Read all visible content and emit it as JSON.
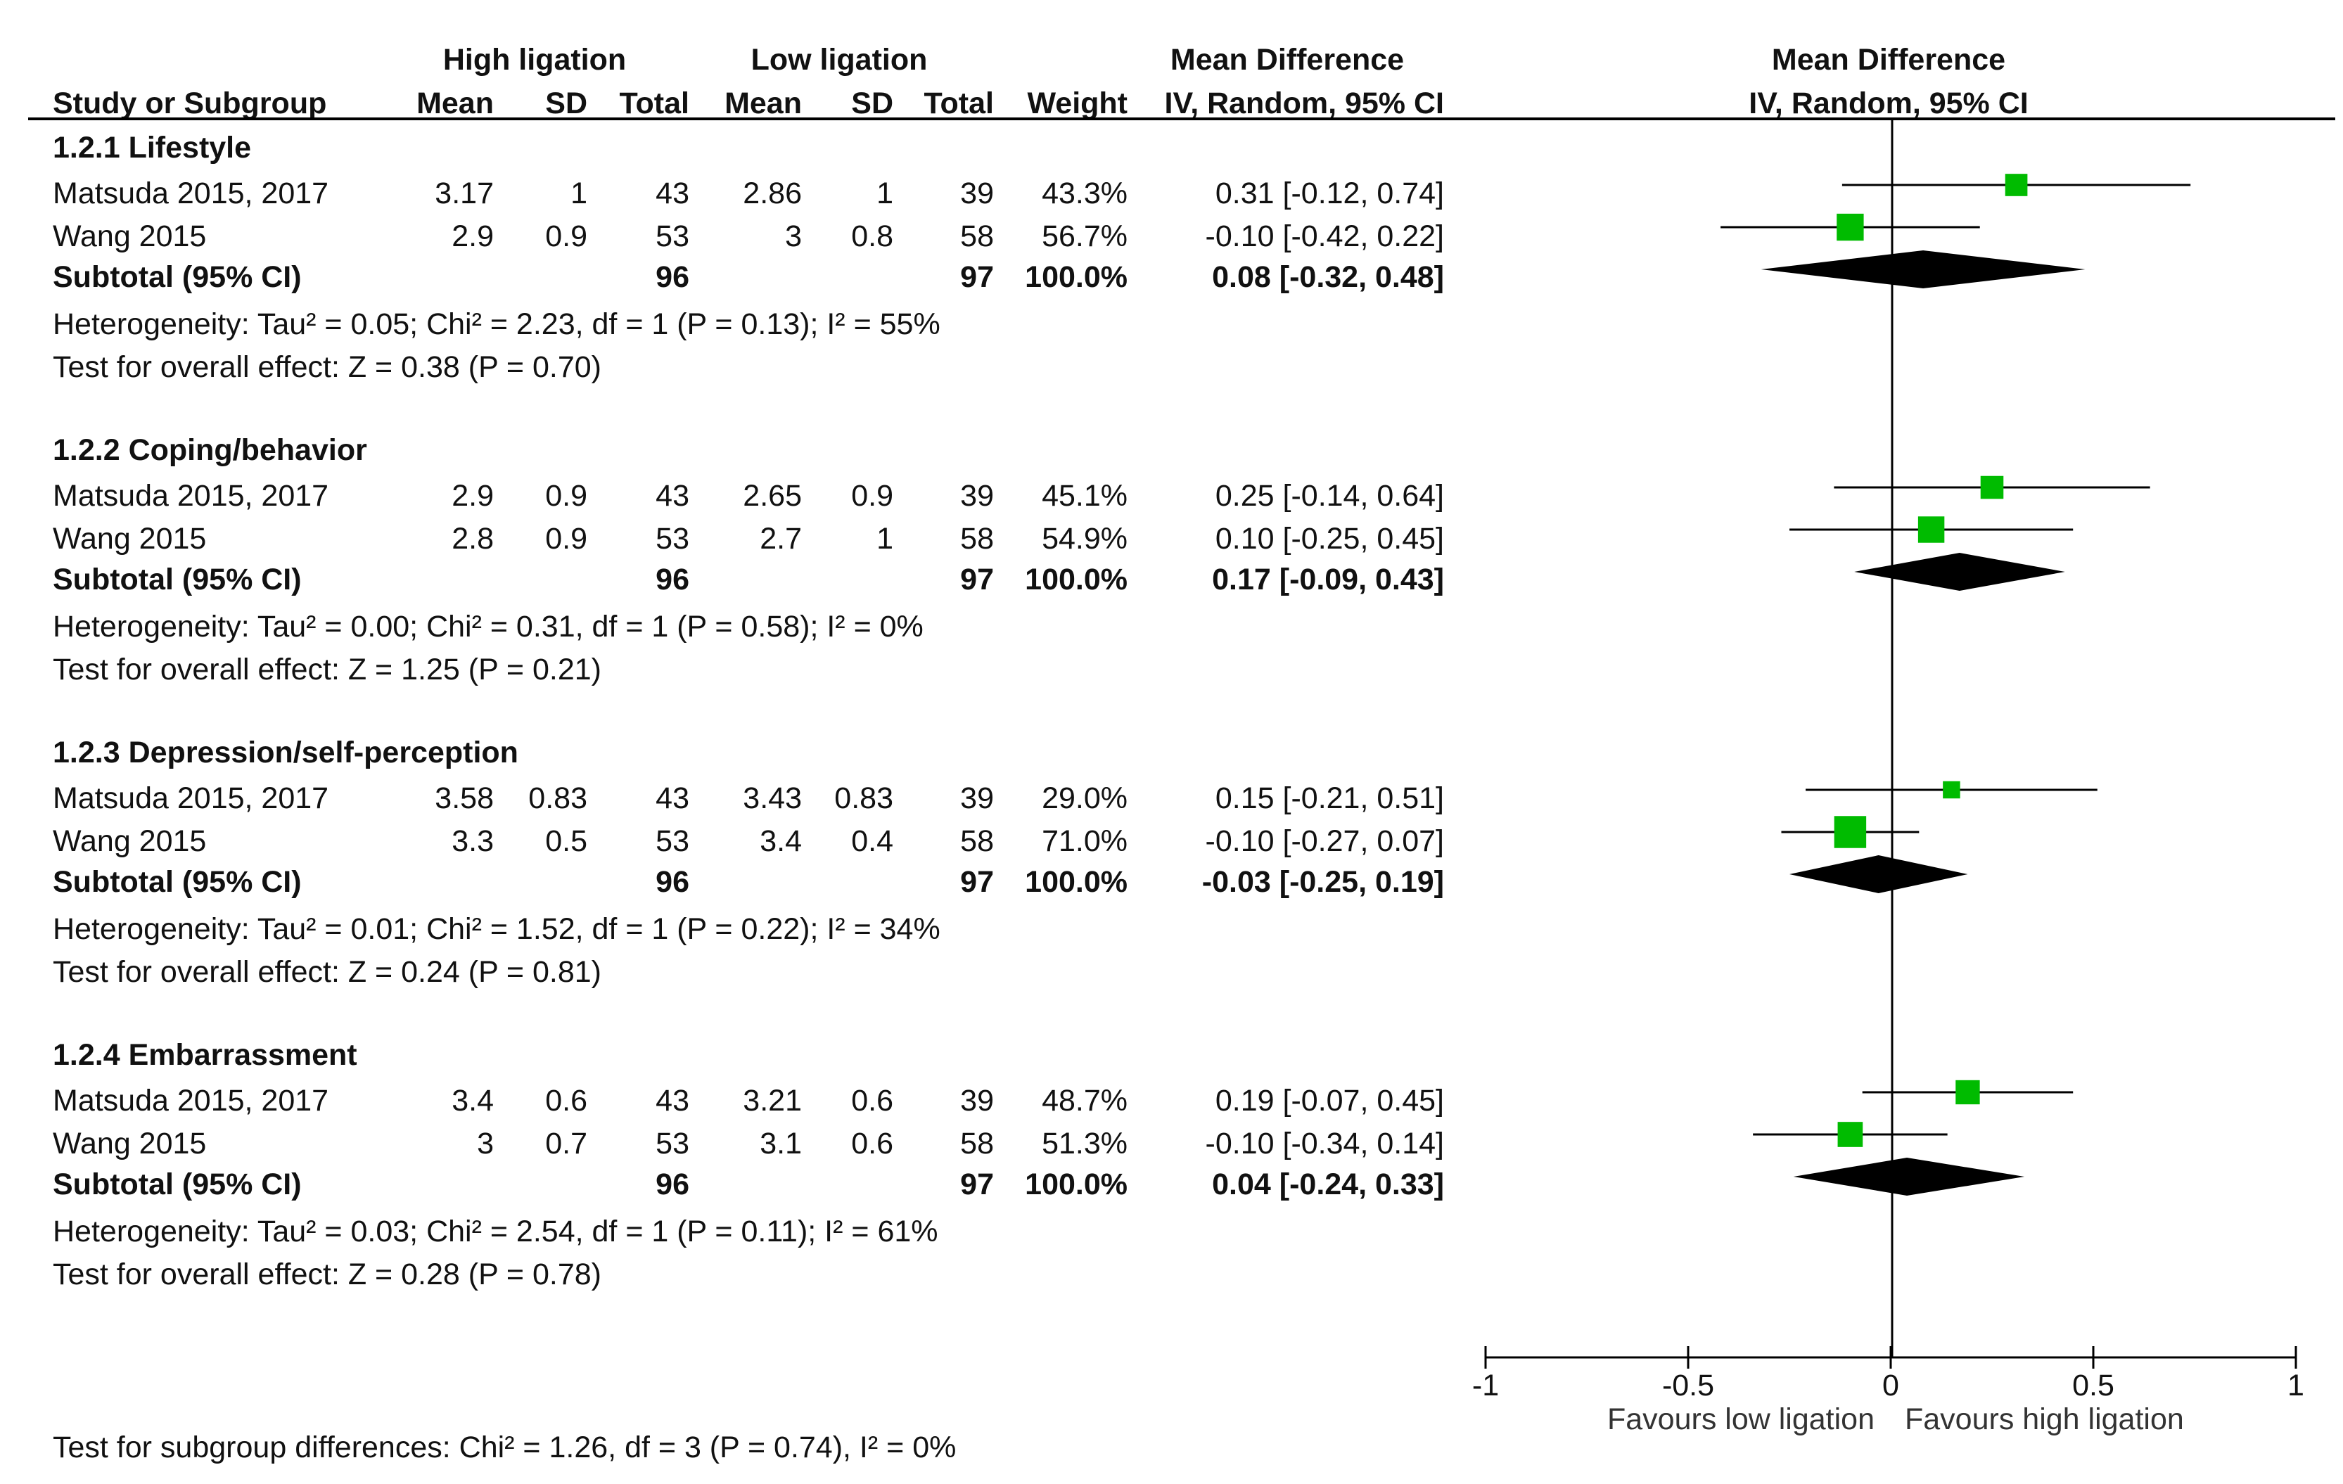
{
  "header": {
    "group1": "High ligation",
    "group2": "Low ligation",
    "effect_title": "Mean Difference",
    "plot_title": "Mean Difference",
    "cols": {
      "study": "Study or Subgroup",
      "mean1": "Mean",
      "sd1": "SD",
      "total1": "Total",
      "mean2": "Mean",
      "sd2": "SD",
      "total2": "Total",
      "weight": "Weight",
      "ci": "IV, Random, 95% CI"
    },
    "plot_subtitle": "IV, Random, 95% CI"
  },
  "subgroups": [
    {
      "title": "1.2.1 Lifestyle",
      "studies": [
        {
          "name": "Matsuda 2015, 2017",
          "mean1": "3.17",
          "sd1": "1",
          "total1": "43",
          "mean2": "2.86",
          "sd2": "1",
          "total2": "39",
          "weight": "43.3%",
          "ci": "0.31 [-0.12, 0.74]"
        },
        {
          "name": "Wang 2015",
          "mean1": "2.9",
          "sd1": "0.9",
          "total1": "53",
          "mean2": "3",
          "sd2": "0.8",
          "total2": "58",
          "weight": "56.7%",
          "ci": "-0.10 [-0.42, 0.22]"
        }
      ],
      "subtotal": {
        "label": "Subtotal (95% CI)",
        "total1": "96",
        "total2": "97",
        "weight": "100.0%",
        "ci": "0.08 [-0.32, 0.48]"
      },
      "heterogeneity": "Heterogeneity: Tau² = 0.05; Chi² = 2.23, df = 1 (P = 0.13); I² = 55%",
      "overall": "Test for overall effect: Z = 0.38 (P = 0.70)"
    },
    {
      "title": "1.2.2 Coping/behavior",
      "studies": [
        {
          "name": "Matsuda 2015, 2017",
          "mean1": "2.9",
          "sd1": "0.9",
          "total1": "43",
          "mean2": "2.65",
          "sd2": "0.9",
          "total2": "39",
          "weight": "45.1%",
          "ci": "0.25 [-0.14, 0.64]"
        },
        {
          "name": "Wang 2015",
          "mean1": "2.8",
          "sd1": "0.9",
          "total1": "53",
          "mean2": "2.7",
          "sd2": "1",
          "total2": "58",
          "weight": "54.9%",
          "ci": "0.10 [-0.25, 0.45]"
        }
      ],
      "subtotal": {
        "label": "Subtotal (95% CI)",
        "total1": "96",
        "total2": "97",
        "weight": "100.0%",
        "ci": "0.17 [-0.09, 0.43]"
      },
      "heterogeneity": "Heterogeneity: Tau² = 0.00; Chi² = 0.31, df = 1 (P = 0.58); I² = 0%",
      "overall": "Test for overall effect: Z = 1.25 (P = 0.21)"
    },
    {
      "title": "1.2.3 Depression/self-perception",
      "studies": [
        {
          "name": "Matsuda 2015, 2017",
          "mean1": "3.58",
          "sd1": "0.83",
          "total1": "43",
          "mean2": "3.43",
          "sd2": "0.83",
          "total2": "39",
          "weight": "29.0%",
          "ci": "0.15 [-0.21, 0.51]"
        },
        {
          "name": "Wang 2015",
          "mean1": "3.3",
          "sd1": "0.5",
          "total1": "53",
          "mean2": "3.4",
          "sd2": "0.4",
          "total2": "58",
          "weight": "71.0%",
          "ci": "-0.10 [-0.27, 0.07]"
        }
      ],
      "subtotal": {
        "label": "Subtotal (95% CI)",
        "total1": "96",
        "total2": "97",
        "weight": "100.0%",
        "ci": "-0.03 [-0.25, 0.19]"
      },
      "heterogeneity": "Heterogeneity: Tau² = 0.01; Chi² = 1.52, df = 1 (P = 0.22); I² = 34%",
      "overall": "Test for overall effect: Z = 0.24 (P = 0.81)"
    },
    {
      "title": "1.2.4 Embarrassment",
      "studies": [
        {
          "name": "Matsuda 2015, 2017",
          "mean1": "3.4",
          "sd1": "0.6",
          "total1": "43",
          "mean2": "3.21",
          "sd2": "0.6",
          "total2": "39",
          "weight": "48.7%",
          "ci": "0.19 [-0.07, 0.45]"
        },
        {
          "name": "Wang 2015",
          "mean1": "3",
          "sd1": "0.7",
          "total1": "53",
          "mean2": "3.1",
          "sd2": "0.6",
          "total2": "58",
          "weight": "51.3%",
          "ci": "-0.10 [-0.34, 0.14]"
        }
      ],
      "subtotal": {
        "label": "Subtotal (95% CI)",
        "total1": "96",
        "total2": "97",
        "weight": "100.0%",
        "ci": "0.04 [-0.24, 0.33]"
      },
      "heterogeneity": "Heterogeneity: Tau² = 0.03; Chi² = 2.54, df = 1 (P = 0.11); I² = 61%",
      "overall": "Test for overall effect: Z = 0.28 (P = 0.78)"
    }
  ],
  "subgroup_differences": "Test for subgroup differences: Chi² = 1.26, df = 3 (P = 0.74), I² = 0%",
  "colors": {
    "study_marker": "#00BB00",
    "diamond": "#000000",
    "line": "#000000"
  },
  "chart_data": {
    "type": "forest",
    "title": "Mean Difference",
    "subtitle": "IV, Random, 95% CI",
    "xlim": [
      -1,
      1
    ],
    "ticks": [
      -1,
      -0.5,
      0,
      0.5,
      1
    ],
    "tick_labels": [
      "-1",
      "-0.5",
      "0",
      "0.5",
      "1"
    ],
    "xlabel_left": "Favours low ligation",
    "xlabel_right": "Favours high ligation",
    "studies": [
      {
        "subgroup": "1.2.1 Lifestyle",
        "name": "Matsuda 2015, 2017",
        "md": 0.31,
        "lo": -0.12,
        "hi": 0.74,
        "weight": 43.3
      },
      {
        "subgroup": "1.2.1 Lifestyle",
        "name": "Wang 2015",
        "md": -0.1,
        "lo": -0.42,
        "hi": 0.22,
        "weight": 56.7
      },
      {
        "subgroup": "1.2.2 Coping/behavior",
        "name": "Matsuda 2015, 2017",
        "md": 0.25,
        "lo": -0.14,
        "hi": 0.64,
        "weight": 45.1
      },
      {
        "subgroup": "1.2.2 Coping/behavior",
        "name": "Wang 2015",
        "md": 0.1,
        "lo": -0.25,
        "hi": 0.45,
        "weight": 54.9
      },
      {
        "subgroup": "1.2.3 Depression/self-perception",
        "name": "Matsuda 2015, 2017",
        "md": 0.15,
        "lo": -0.21,
        "hi": 0.51,
        "weight": 29.0
      },
      {
        "subgroup": "1.2.3 Depression/self-perception",
        "name": "Wang 2015",
        "md": -0.1,
        "lo": -0.27,
        "hi": 0.07,
        "weight": 71.0
      },
      {
        "subgroup": "1.2.4 Embarrassment",
        "name": "Matsuda 2015, 2017",
        "md": 0.19,
        "lo": -0.07,
        "hi": 0.45,
        "weight": 48.7
      },
      {
        "subgroup": "1.2.4 Embarrassment",
        "name": "Wang 2015",
        "md": -0.1,
        "lo": -0.34,
        "hi": 0.14,
        "weight": 51.3
      }
    ],
    "subtotals": [
      {
        "subgroup": "1.2.1 Lifestyle",
        "md": 0.08,
        "lo": -0.32,
        "hi": 0.48
      },
      {
        "subgroup": "1.2.2 Coping/behavior",
        "md": 0.17,
        "lo": -0.09,
        "hi": 0.43
      },
      {
        "subgroup": "1.2.3 Depression/self-perception",
        "md": -0.03,
        "lo": -0.25,
        "hi": 0.19
      },
      {
        "subgroup": "1.2.4 Embarrassment",
        "md": 0.04,
        "lo": -0.24,
        "hi": 0.33
      }
    ]
  }
}
